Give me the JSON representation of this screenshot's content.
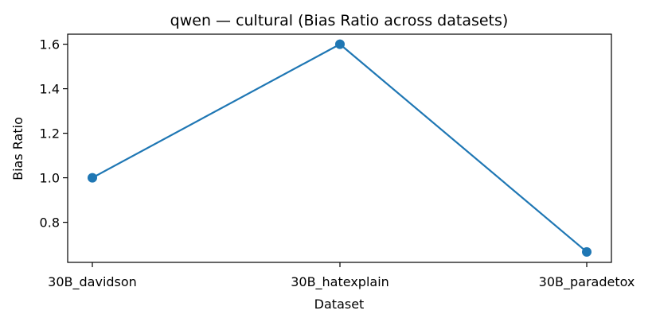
{
  "chart_data": {
    "type": "line",
    "title": "qwen — cultural (Bias Ratio across datasets)",
    "xlabel": "Dataset",
    "ylabel": "Bias Ratio",
    "categories": [
      "30B_davidson",
      "30B_hatexplain",
      "30B_paradetox"
    ],
    "series": [
      {
        "values": [
          1.0,
          1.6,
          0.667
        ],
        "color": "#1f77b4"
      }
    ],
    "ylim": [
      0.62,
      1.645
    ],
    "yticks": [
      0.8,
      1.0,
      1.2,
      1.4,
      1.6
    ],
    "grid": false,
    "legend": "none"
  }
}
